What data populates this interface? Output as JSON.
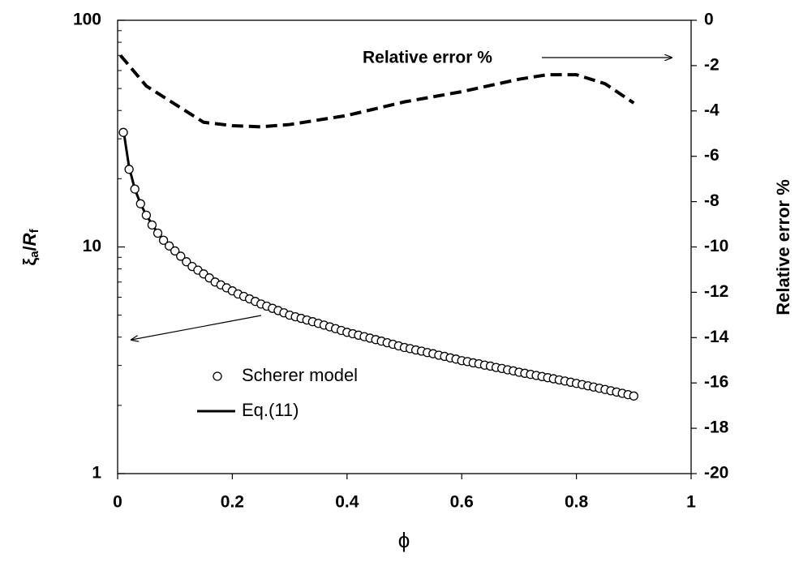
{
  "chart_data": {
    "type": "line",
    "x_label": "ϕ",
    "y_label_parts": [
      "ξ",
      "a",
      "/",
      "R",
      "f"
    ],
    "y2_label": "Relative error %",
    "xlim": [
      0,
      1
    ],
    "xticks": [
      0,
      0.2,
      0.4,
      0.6,
      0.8,
      1
    ],
    "ylim": [
      1,
      100
    ],
    "yticks": [
      1,
      10,
      100
    ],
    "y_scale": "log",
    "y_minor_ticks": [
      2,
      3,
      4,
      5,
      6,
      7,
      8,
      9,
      20,
      30,
      40,
      50,
      60,
      70,
      80,
      90
    ],
    "y2lim": [
      -20,
      0
    ],
    "y2ticks": [
      -20,
      -18,
      -16,
      -14,
      -12,
      -10,
      -8,
      -6,
      -4,
      -2,
      0
    ],
    "legend": "lower-left",
    "annotations": [
      {
        "text": "Relative error %"
      }
    ],
    "series": [
      {
        "name": "Scherer model",
        "style": "markers",
        "color": "#000000",
        "x": [
          0.01,
          0.02,
          0.03,
          0.04,
          0.05,
          0.06,
          0.07,
          0.08,
          0.09,
          0.1,
          0.11,
          0.12,
          0.13,
          0.14,
          0.15,
          0.16,
          0.17,
          0.18,
          0.19,
          0.2,
          0.21,
          0.22,
          0.23,
          0.24,
          0.25,
          0.26,
          0.27,
          0.28,
          0.29,
          0.3,
          0.31,
          0.32,
          0.33,
          0.34,
          0.35,
          0.36,
          0.37,
          0.38,
          0.39,
          0.4,
          0.41,
          0.42,
          0.43,
          0.44,
          0.45,
          0.46,
          0.47,
          0.48,
          0.49,
          0.5,
          0.51,
          0.52,
          0.53,
          0.54,
          0.55,
          0.56,
          0.57,
          0.58,
          0.59,
          0.6,
          0.61,
          0.62,
          0.63,
          0.64,
          0.65,
          0.66,
          0.67,
          0.68,
          0.69,
          0.7,
          0.71,
          0.72,
          0.73,
          0.74,
          0.75,
          0.76,
          0.77,
          0.78,
          0.79,
          0.8,
          0.81,
          0.82,
          0.83,
          0.84,
          0.85,
          0.86,
          0.87,
          0.88,
          0.89,
          0.9
        ],
        "values": [
          32,
          22,
          18,
          15.5,
          13.8,
          12.5,
          11.5,
          10.7,
          10.1,
          9.6,
          9.1,
          8.6,
          8.2,
          7.9,
          7.6,
          7.3,
          7.0,
          6.8,
          6.6,
          6.4,
          6.2,
          6.05,
          5.9,
          5.75,
          5.6,
          5.48,
          5.36,
          5.24,
          5.12,
          5.0,
          4.92,
          4.84,
          4.76,
          4.68,
          4.6,
          4.52,
          4.44,
          4.36,
          4.28,
          4.2,
          4.14,
          4.08,
          4.02,
          3.96,
          3.9,
          3.84,
          3.78,
          3.72,
          3.66,
          3.6,
          3.56,
          3.51,
          3.47,
          3.42,
          3.38,
          3.33,
          3.29,
          3.24,
          3.2,
          3.15,
          3.12,
          3.08,
          3.05,
          3.01,
          2.98,
          2.94,
          2.91,
          2.87,
          2.84,
          2.8,
          2.77,
          2.74,
          2.71,
          2.68,
          2.65,
          2.62,
          2.59,
          2.56,
          2.53,
          2.5,
          2.47,
          2.44,
          2.41,
          2.38,
          2.35,
          2.32,
          2.29,
          2.26,
          2.23,
          2.2
        ]
      },
      {
        "name": "Eq.(11)",
        "style": "solid",
        "color": "#000000",
        "x": [
          0.01,
          0.02,
          0.03,
          0.04,
          0.05,
          0.07,
          0.1,
          0.15,
          0.2,
          0.3,
          0.4,
          0.5,
          0.6,
          0.7,
          0.8,
          0.9
        ],
        "values": [
          33,
          22.5,
          18,
          15.5,
          13.8,
          11.5,
          9.6,
          7.6,
          6.4,
          5.0,
          4.2,
          3.6,
          3.15,
          2.8,
          2.5,
          2.2
        ]
      },
      {
        "style": "dashed",
        "axis": "y2",
        "color": "#000000",
        "x": [
          0.005,
          0.05,
          0.1,
          0.15,
          0.2,
          0.25,
          0.3,
          0.4,
          0.5,
          0.6,
          0.7,
          0.75,
          0.8,
          0.85,
          0.9
        ],
        "values": [
          -1.55,
          -2.9,
          -3.7,
          -4.5,
          -4.65,
          -4.7,
          -4.6,
          -4.2,
          -3.6,
          -3.15,
          -2.6,
          -2.4,
          -2.4,
          -2.8,
          -3.65
        ]
      }
    ]
  }
}
